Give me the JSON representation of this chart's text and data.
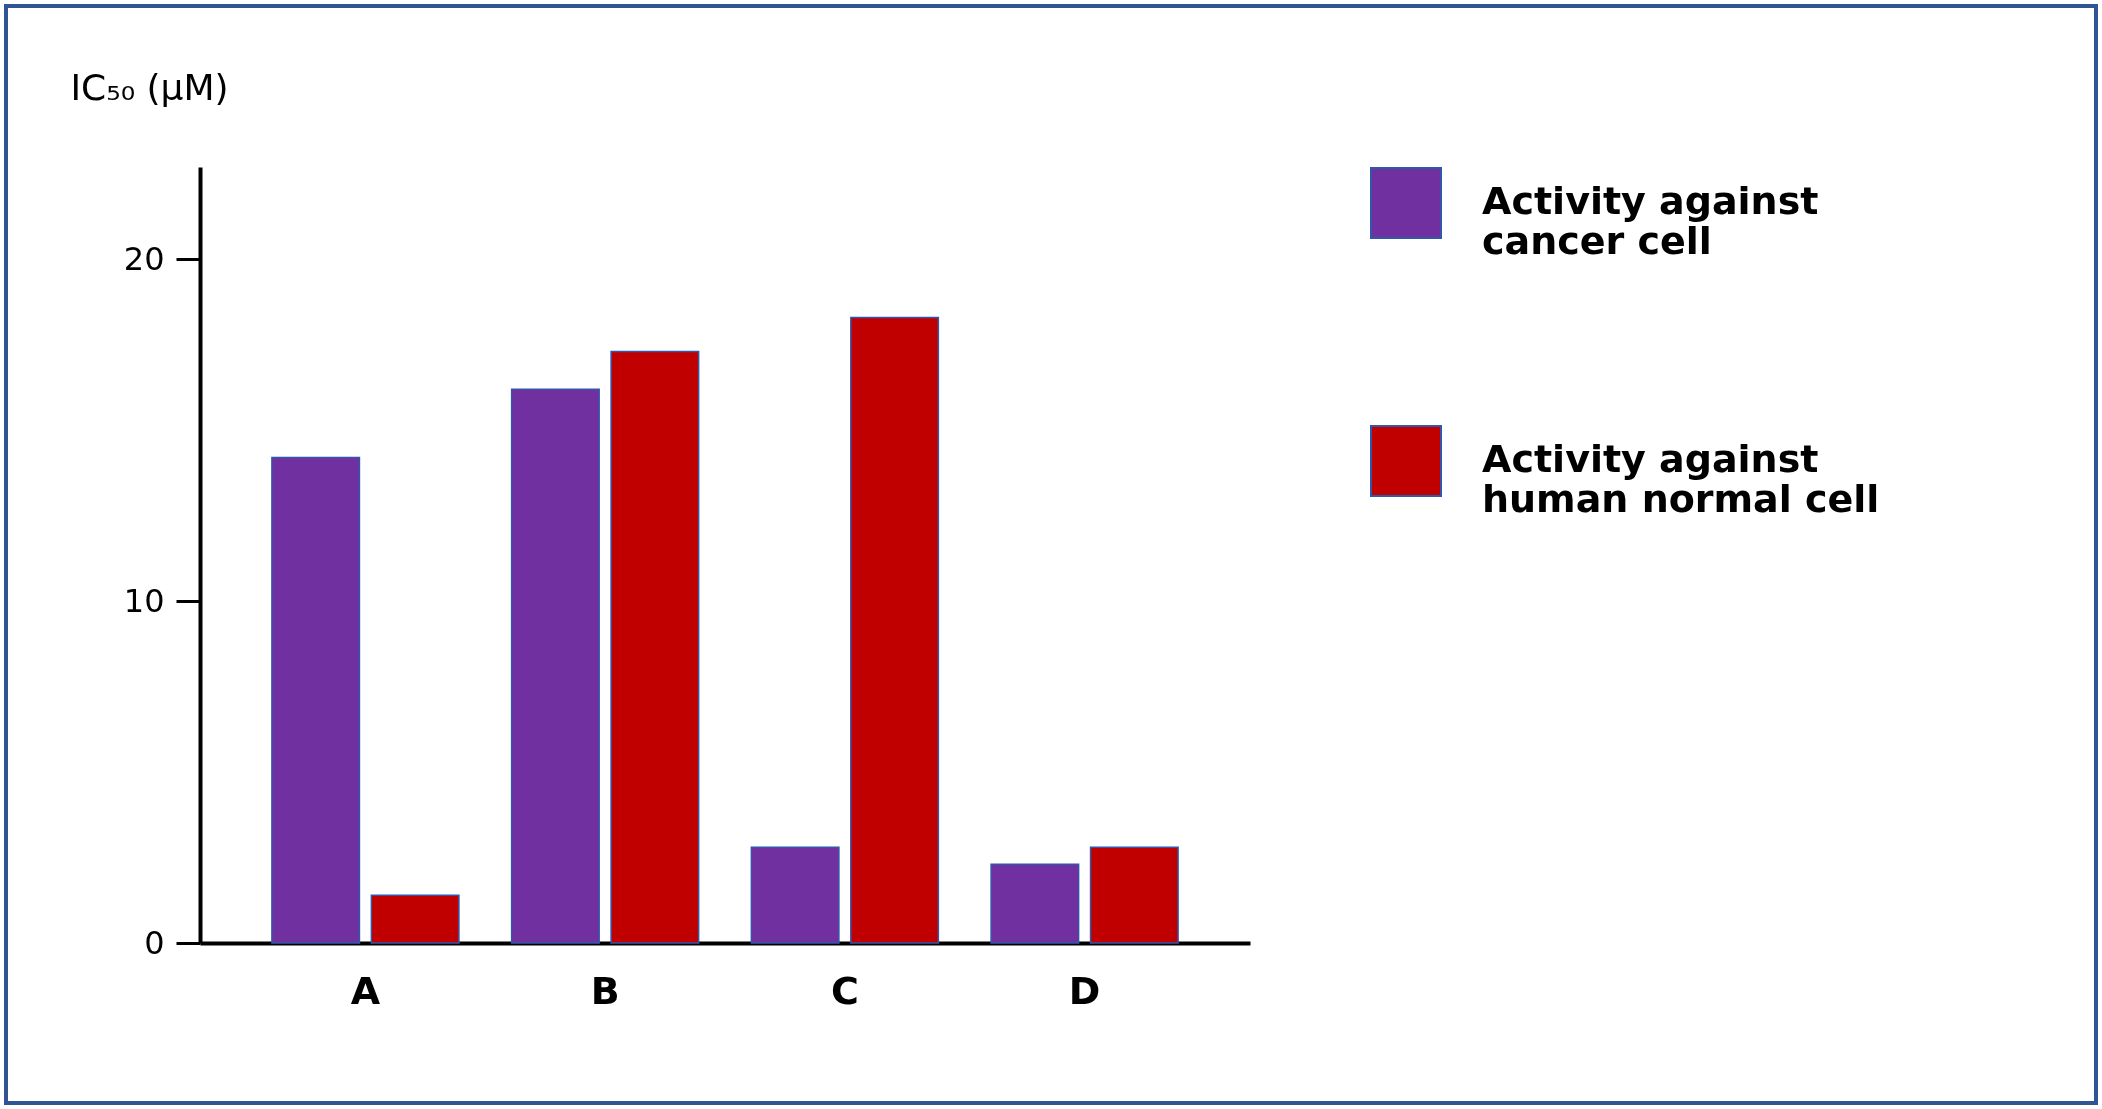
{
  "chart_data": {
    "type": "bar",
    "ylabel": "IC₅₀ (μM)",
    "categories": [
      "A",
      "B",
      "C",
      "D"
    ],
    "series": [
      {
        "name": "Activity against cancer cell",
        "color": "#7030a0",
        "values": [
          14.2,
          16.2,
          2.8,
          2.3
        ]
      },
      {
        "name": "Activity against human normal cell",
        "color": "#c00000",
        "values": [
          1.4,
          17.3,
          18.3,
          2.8
        ]
      }
    ],
    "ylim": [
      0,
      22.7
    ],
    "yticks": [
      0,
      10,
      20
    ],
    "grid": false,
    "legend": "right"
  }
}
